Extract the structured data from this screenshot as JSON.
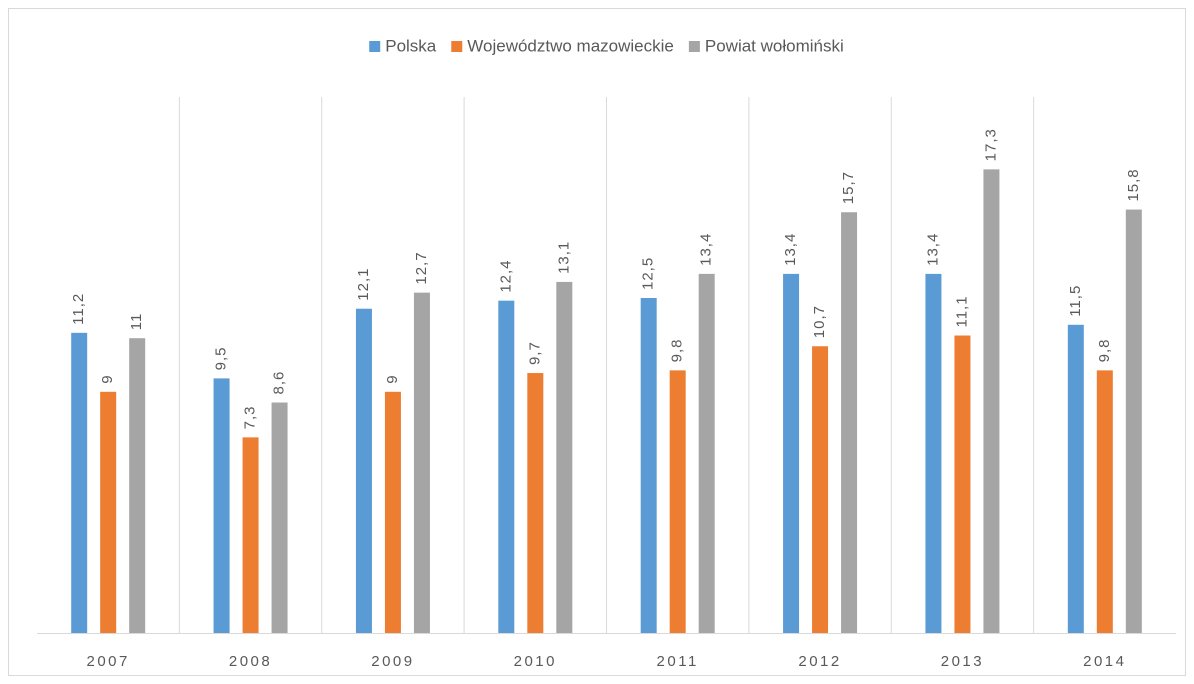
{
  "chart_data": {
    "type": "bar",
    "categories": [
      "2007",
      "2008",
      "2009",
      "2010",
      "2011",
      "2012",
      "2013",
      "2014"
    ],
    "series": [
      {
        "name": "Polska",
        "color": "#5b9bd5",
        "values": [
          11.2,
          9.5,
          12.1,
          12.4,
          12.5,
          13.4,
          13.4,
          11.5
        ],
        "value_labels": [
          "11,2",
          "9,5",
          "12,1",
          "12,4",
          "12,5",
          "13,4",
          "13,4",
          "11,5"
        ]
      },
      {
        "name": "Województwo mazowieckie",
        "color": "#ed7d31",
        "values": [
          9,
          7.3,
          9,
          9.7,
          9.8,
          10.7,
          11.1,
          9.8
        ],
        "value_labels": [
          "9",
          "7,3",
          "9",
          "9,7",
          "9,8",
          "10,7",
          "11,1",
          "9,8"
        ]
      },
      {
        "name": "Powiat wołomiński",
        "color": "#a5a5a5",
        "values": [
          11,
          8.6,
          12.7,
          13.1,
          13.4,
          15.7,
          17.3,
          15.8
        ],
        "value_labels": [
          "11",
          "8,6",
          "12,7",
          "13,1",
          "13,4",
          "15,7",
          "17,3",
          "15,8"
        ]
      }
    ],
    "ylim": [
      0,
      20
    ],
    "legend": "top"
  }
}
